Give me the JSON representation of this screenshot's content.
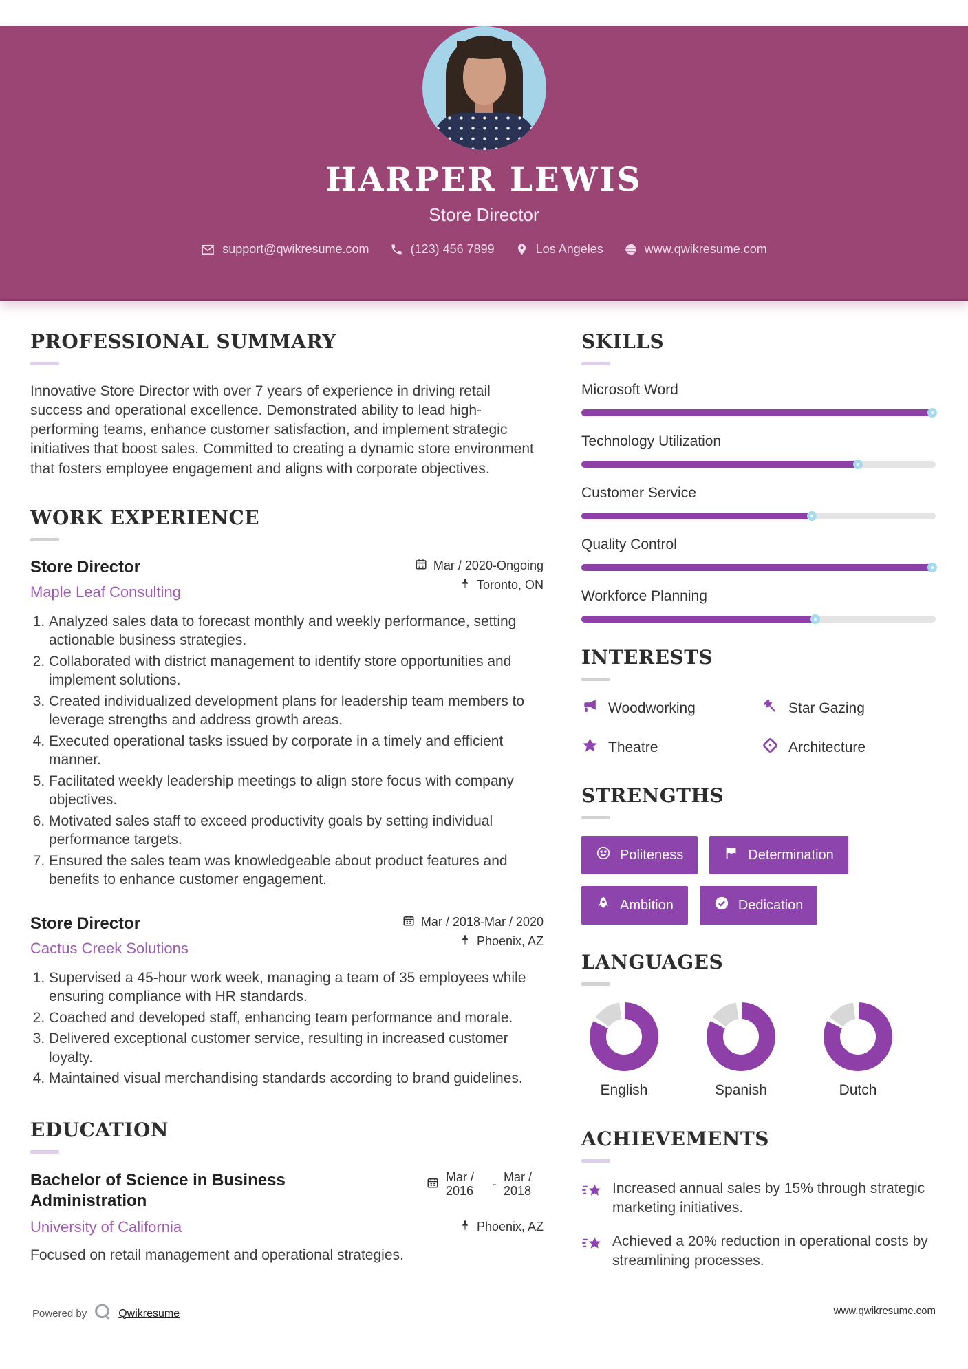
{
  "colors": {
    "header_bg": "#9a4573",
    "header_border": "#873c65",
    "accent_purple": "#a05cb5",
    "icon_purple": "#8e44ad",
    "button_purple": "#8e44ad",
    "slider_fill": "#8e3fa8",
    "slider_track": "#e4e4e4",
    "handle_ring": "#a5dbec",
    "donut_gray": "#d8d8d8",
    "heading_color": "#2d2d2d",
    "text_color": "#3d3d3d",
    "contact_color": "#f2dcea",
    "photo_bg": "#a5d3e8",
    "rule_lavender": "#ddcfe9",
    "rule_gray": "#d2d2d2"
  },
  "header": {
    "name": "HARPER LEWIS",
    "title": "Store Director",
    "contact": [
      {
        "icon": "email-icon",
        "text": "support@qwikresume.com"
      },
      {
        "icon": "phone-icon",
        "text": "(123) 456 7899"
      },
      {
        "icon": "location-icon",
        "text": "Los Angeles"
      },
      {
        "icon": "globe-icon",
        "text": "www.qwikresume.com"
      }
    ]
  },
  "sections": {
    "summary": {
      "heading": "PROFESSIONAL SUMMARY",
      "text": "Innovative Store Director with over 7 years of experience in driving retail success and operational excellence. Demonstrated ability to lead high-performing teams, enhance customer satisfaction, and implement strategic initiatives that boost sales. Committed to creating a dynamic store environment that fosters employee engagement and aligns with corporate objectives."
    },
    "experience": {
      "heading": "WORK EXPERIENCE",
      "jobs": [
        {
          "title": "Store Director",
          "company": "Maple Leaf Consulting",
          "date": "Mar / 2020-Ongoing",
          "location": "Toronto, ON",
          "bullets": [
            "Analyzed sales data to forecast monthly and weekly performance, setting actionable business strategies.",
            "Collaborated with district management to identify store opportunities and implement solutions.",
            "Created individualized development plans for leadership team members to leverage strengths and address growth areas.",
            "Executed operational tasks issued by corporate in a timely and efficient manner.",
            "Facilitated weekly leadership meetings to align store focus with company objectives.",
            "Motivated sales staff to exceed productivity goals by setting individual performance targets.",
            "Ensured the sales team was knowledgeable about product features and benefits to enhance customer engagement."
          ]
        },
        {
          "title": "Store Director",
          "company": "Cactus Creek Solutions",
          "date": "Mar / 2018-Mar / 2020",
          "location": "Phoenix, AZ",
          "bullets": [
            "Supervised a 45-hour work week, managing a team of 35 employees while ensuring compliance with HR standards.",
            "Coached and developed staff, enhancing team performance and morale.",
            "Delivered exceptional customer service, resulting in increased customer loyalty.",
            "Maintained visual merchandising standards according to brand guidelines."
          ]
        }
      ]
    },
    "education": {
      "heading": "EDUCATION",
      "degree": "Bachelor of Science in Business Administration",
      "school": "University of California",
      "date_start": "Mar / 2016",
      "date_separator": "-",
      "date_end": "Mar / 2018",
      "location": "Phoenix, AZ",
      "note": "Focused on retail management and operational strategies."
    },
    "skills": {
      "heading": "SKILLS",
      "items": [
        {
          "label": "Microsoft Word",
          "percent": 100
        },
        {
          "label": "Technology Utilization",
          "percent": 78
        },
        {
          "label": "Customer Service",
          "percent": 65
        },
        {
          "label": "Quality Control",
          "percent": 100
        },
        {
          "label": "Workforce Planning",
          "percent": 66
        }
      ]
    },
    "interests": {
      "heading": "INTERESTS",
      "items": [
        {
          "icon": "megaphone-icon",
          "label": "Woodworking"
        },
        {
          "icon": "gavel-icon",
          "label": "Star Gazing"
        },
        {
          "icon": "star-icon",
          "label": "Theatre"
        },
        {
          "icon": "tag-icon",
          "label": "Architecture"
        }
      ]
    },
    "strengths": {
      "heading": "STRENGTHS",
      "items": [
        {
          "icon": "smiley-icon",
          "label": "Politeness"
        },
        {
          "icon": "flag-icon",
          "label": "Determination"
        },
        {
          "icon": "rocket-icon",
          "label": "Ambition"
        },
        {
          "icon": "check-icon",
          "label": "Dedication"
        }
      ]
    },
    "languages": {
      "heading": "LANGUAGES",
      "items": [
        {
          "label": "English",
          "percent": 82
        },
        {
          "label": "Spanish",
          "percent": 82
        },
        {
          "label": "Dutch",
          "percent": 82
        }
      ]
    },
    "achievements": {
      "heading": "ACHIEVEMENTS",
      "items": [
        {
          "icon": "shooting-star-icon",
          "text": "Increased annual sales by 15% through strategic marketing initiatives."
        },
        {
          "icon": "shooting-star-icon",
          "text": "Achieved a 20% reduction in operational costs by streamlining processes."
        }
      ]
    }
  },
  "footer": {
    "powered_by": "Powered by",
    "brand": "Qwikresume",
    "site": "www.qwikresume.com"
  }
}
